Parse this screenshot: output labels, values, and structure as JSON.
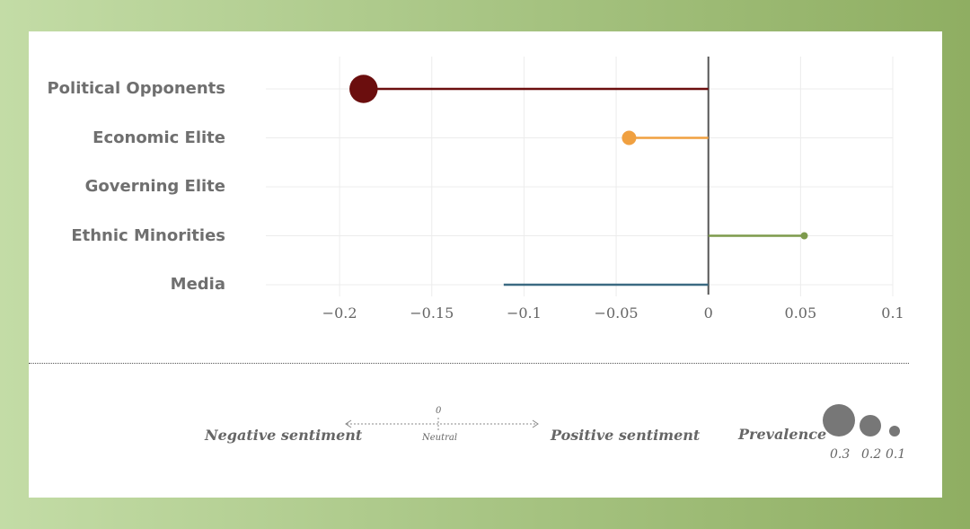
{
  "chart_data": {
    "type": "lollipop",
    "categories": [
      "Political Opponents",
      "Economic Elite",
      "Governing Elite",
      "Ethnic Minorities",
      "Media"
    ],
    "values": [
      -0.187,
      -0.043,
      0.0,
      0.052,
      -0.111
    ],
    "prevalence": [
      0.31,
      0.08,
      0.0,
      0.02,
      0.0
    ],
    "colors": [
      "#6b0e0e",
      "#f0a040",
      "#9a9a9a",
      "#7d9a4c",
      "#3b6a82"
    ],
    "xlim": [
      -0.24,
      0.1
    ],
    "xticks": [
      -0.2,
      -0.15,
      -0.1,
      -0.05,
      0,
      0.05,
      0.1
    ],
    "xtick_labels": [
      "−0.2",
      "−0.15",
      "−0.1",
      "−0.05",
      "0",
      "0.05",
      "0.1"
    ],
    "grid": true
  },
  "legend": {
    "negative": "Negative sentiment",
    "positive": "Positive sentiment",
    "zero": "0",
    "neutral": "Neutral",
    "prevalence_title": "Prevalence",
    "sizes": [
      "0.3",
      "0.2",
      "0.1"
    ]
  }
}
